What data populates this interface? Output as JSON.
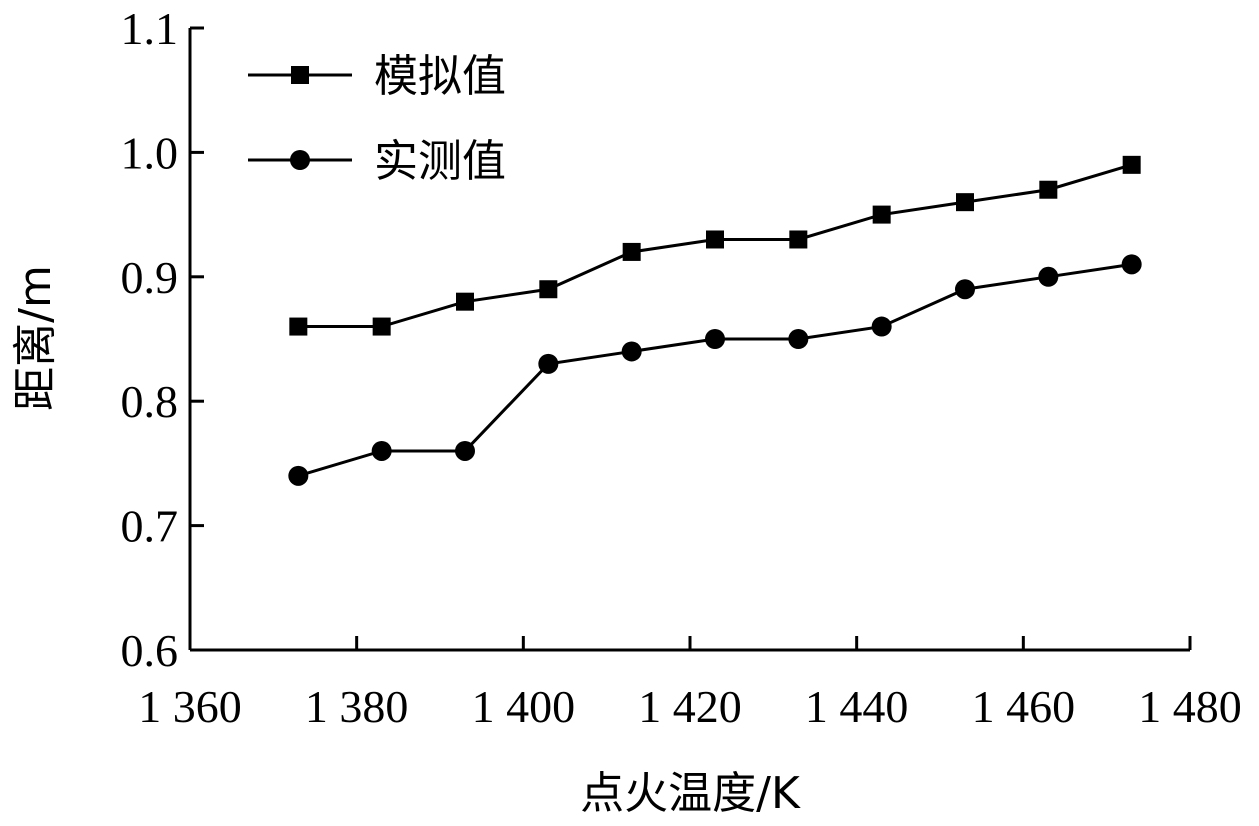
{
  "chart_data": {
    "type": "line",
    "xlabel": "点火温度/K",
    "ylabel": "距离/m",
    "xlim": [
      1360,
      1480
    ],
    "ylim": [
      0.6,
      1.1
    ],
    "x_ticks": [
      1360,
      1380,
      1400,
      1420,
      1440,
      1460,
      1480
    ],
    "x_tick_labels": [
      "1 360",
      "1 380",
      "1 400",
      "1 420",
      "1 440",
      "1 460",
      "1 480"
    ],
    "y_ticks": [
      0.6,
      0.7,
      0.8,
      0.9,
      1.0,
      1.1
    ],
    "y_tick_labels": [
      "0.6",
      "0.7",
      "0.8",
      "0.9",
      "1.0",
      "1.1"
    ],
    "grid": false,
    "legend_position": "top-left",
    "x": [
      1373,
      1383,
      1393,
      1403,
      1413,
      1423,
      1433,
      1443,
      1453,
      1463,
      1473
    ],
    "series": [
      {
        "name": "模拟值",
        "marker": "square",
        "color": "#000000",
        "values": [
          0.86,
          0.86,
          0.88,
          0.89,
          0.92,
          0.93,
          0.93,
          0.95,
          0.96,
          0.97,
          0.99
        ]
      },
      {
        "name": "实测值",
        "marker": "circle",
        "color": "#000000",
        "values": [
          0.74,
          0.76,
          0.76,
          0.83,
          0.84,
          0.85,
          0.85,
          0.86,
          0.89,
          0.9,
          0.91
        ]
      }
    ]
  }
}
